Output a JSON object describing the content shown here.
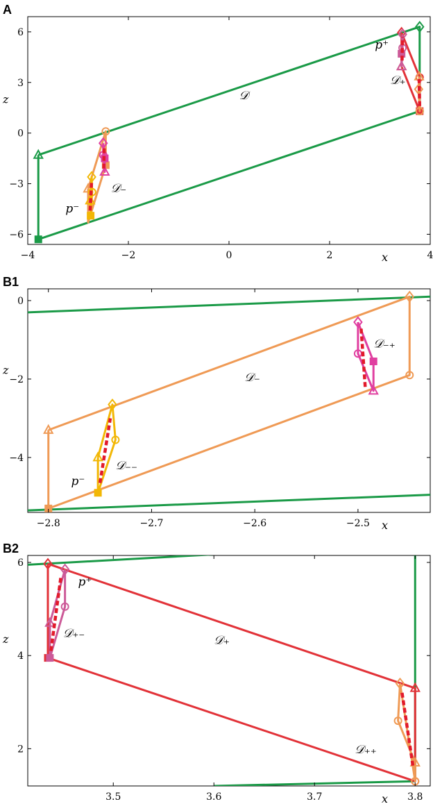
{
  "colors": {
    "green": "#1a9a47",
    "orange": "#ef9a55",
    "gold": "#f2b705",
    "pink": "#e03fa0",
    "red": "#e23238",
    "mauve": "#cc5a98",
    "dash": "#e21a2b"
  },
  "chart_data": [
    {
      "type": "line",
      "panel": "A",
      "xlabel": "x",
      "ylabel": "z",
      "xlim": [
        -4,
        4
      ],
      "ylim": [
        -6.6,
        6.9
      ],
      "xticks": [
        -4,
        -2,
        0,
        2,
        4
      ],
      "yticks": [
        -6,
        -3,
        0,
        3,
        6
      ],
      "labels": [
        {
          "text": "𝒟",
          "x": 0.2,
          "y": 2.0
        },
        {
          "text": "𝒟₋",
          "x": -2.35,
          "y": -3.5
        },
        {
          "text": "𝒟₊",
          "x": 3.2,
          "y": 2.9
        },
        {
          "text": "p⁻",
          "x": -3.25,
          "y": -4.7
        },
        {
          "text": "p⁺",
          "x": 2.9,
          "y": 5.0
        }
      ],
      "series": [
        {
          "color": "green",
          "markers": [
            "triangle",
            "diamond",
            "circle",
            "square"
          ],
          "points": [
            [
              -3.79,
              -1.3
            ],
            [
              3.79,
              6.3
            ],
            [
              3.79,
              1.3
            ],
            [
              -3.79,
              -6.3
            ],
            [
              -3.79,
              -1.3
            ]
          ]
        },
        {
          "color": "orange",
          "markers": [
            "triangle",
            "circle",
            "square"
          ],
          "points": [
            [
              -2.8,
              -3.3
            ],
            [
              -2.45,
              0.1
            ],
            [
              -2.45,
              -1.9
            ],
            [
              -2.8,
              -5.3
            ],
            [
              -2.8,
              -3.3
            ]
          ]
        },
        {
          "color": "red",
          "markers": [
            "diamond",
            "circle",
            "square",
            "triangle"
          ],
          "points": [
            [
              3.43,
              5.95
            ],
            [
              3.79,
              3.3
            ],
            [
              3.79,
              1.3
            ],
            [
              3.43,
              3.95
            ],
            [
              3.43,
              5.95
            ]
          ]
        },
        {
          "color": "gold",
          "markers": [
            "triangle",
            "diamond",
            "circle",
            "square"
          ],
          "points": [
            [
              -2.76,
              -4.0
            ],
            [
              -2.73,
              -2.6
            ],
            [
              -2.72,
              -3.5
            ],
            [
              -2.75,
              -4.9
            ],
            [
              -2.76,
              -4.0
            ]
          ]
        },
        {
          "color": "pink",
          "markers": [
            "diamond",
            "circle",
            "triangle",
            "square"
          ],
          "points": [
            [
              -2.5,
              -0.6
            ],
            [
              -2.5,
              -1.3
            ],
            [
              -2.47,
              -2.3
            ],
            [
              -2.47,
              -1.5
            ],
            [
              -2.5,
              -0.6
            ]
          ]
        },
        {
          "color": "mauve",
          "markers": [
            "diamond",
            "circle",
            "triangle",
            "square"
          ],
          "points": [
            [
              3.45,
              5.85
            ],
            [
              3.45,
              5.05
            ],
            [
              3.43,
              3.95
            ],
            [
              3.43,
              4.7
            ],
            [
              3.45,
              5.85
            ]
          ]
        },
        {
          "color": "orange",
          "markers": [
            "triangle",
            "circle",
            "diamond"
          ],
          "points": [
            [
              3.78,
              3.35
            ],
            [
              3.79,
              1.3
            ],
            [
              3.77,
              2.6
            ],
            [
              3.78,
              3.35
            ]
          ]
        }
      ],
      "dashes": [
        {
          "points": [
            [
              -2.76,
              -4.6
            ],
            [
              -2.73,
              -2.8
            ]
          ]
        },
        {
          "points": [
            [
              -2.49,
              -2.1
            ],
            [
              -2.48,
              -0.9
            ]
          ]
        },
        {
          "points": [
            [
              3.44,
              4.3
            ],
            [
              3.45,
              5.7
            ]
          ]
        },
        {
          "points": [
            [
              3.79,
              1.6
            ],
            [
              3.78,
              3.2
            ]
          ]
        }
      ]
    },
    {
      "type": "line",
      "panel": "B1",
      "xlabel": "x",
      "ylabel": "z",
      "xlim": [
        -2.82,
        -2.43
      ],
      "ylim": [
        -5.4,
        0.3
      ],
      "xticks": [
        -2.8,
        -2.7,
        -2.6,
        -2.5
      ],
      "yticks": [
        -4,
        -2,
        0
      ],
      "labels": [
        {
          "text": "𝒟₋",
          "x": -2.61,
          "y": -2.05
        },
        {
          "text": "𝒟₋₊",
          "x": -2.485,
          "y": -1.2
        },
        {
          "text": "𝒟₋₋",
          "x": -2.735,
          "y": -4.3
        },
        {
          "text": "p⁻",
          "x": -2.778,
          "y": -4.7
        }
      ],
      "series": [
        {
          "color": "green",
          "markers": [],
          "points": [
            [
              -2.82,
              -0.3
            ],
            [
              -2.43,
              0.1
            ]
          ]
        },
        {
          "color": "green",
          "markers": [],
          "points": [
            [
              -2.82,
              -5.35
            ],
            [
              -2.43,
              -4.95
            ]
          ]
        },
        {
          "color": "orange",
          "markers": [
            "triangle",
            "diamond",
            "circle",
            "square"
          ],
          "points": [
            [
              -2.8,
              -3.3
            ],
            [
              -2.45,
              0.1
            ],
            [
              -2.45,
              -1.9
            ],
            [
              -2.8,
              -5.3
            ],
            [
              -2.8,
              -3.3
            ]
          ]
        },
        {
          "color": "pink",
          "markers": [
            "diamond",
            "circle",
            "triangle",
            "square"
          ],
          "points": [
            [
              -2.5,
              -0.55
            ],
            [
              -2.5,
              -1.35
            ],
            [
              -2.485,
              -2.3
            ],
            [
              -2.485,
              -1.55
            ],
            [
              -2.5,
              -0.55
            ]
          ]
        },
        {
          "color": "gold",
          "markers": [
            "triangle",
            "diamond",
            "circle",
            "square"
          ],
          "points": [
            [
              -2.752,
              -4.0
            ],
            [
              -2.738,
              -2.65
            ],
            [
              -2.735,
              -3.55
            ],
            [
              -2.752,
              -4.9
            ],
            [
              -2.752,
              -4.0
            ]
          ]
        }
      ],
      "dashes": [
        {
          "points": [
            [
              -2.75,
              -4.65
            ],
            [
              -2.74,
              -3.0
            ]
          ]
        },
        {
          "points": [
            [
              -2.493,
              -2.2
            ],
            [
              -2.497,
              -0.7
            ]
          ]
        }
      ]
    },
    {
      "type": "line",
      "panel": "B2",
      "xlabel": "x",
      "ylabel": "z",
      "xlim": [
        3.415,
        3.815
      ],
      "ylim": [
        1.2,
        6.15
      ],
      "xticks": [
        3.5,
        3.6,
        3.7,
        3.8
      ],
      "yticks": [
        2,
        4,
        6
      ],
      "labels": [
        {
          "text": "𝒟₊",
          "x": 3.6,
          "y": 4.25
        },
        {
          "text": "𝒟₊₋",
          "x": 3.45,
          "y": 4.4
        },
        {
          "text": "𝒟₊₊",
          "x": 3.74,
          "y": 1.9
        },
        {
          "text": "p⁺",
          "x": 3.465,
          "y": 5.5
        }
      ],
      "series": [
        {
          "color": "green",
          "markers": [],
          "points": [
            [
              3.415,
              5.95
            ],
            [
              3.64,
              6.22
            ]
          ]
        },
        {
          "color": "green",
          "markers": [],
          "points": [
            [
              3.6,
              1.2
            ],
            [
              3.8,
              1.3
            ]
          ]
        },
        {
          "color": "green",
          "markers": [],
          "points": [
            [
              3.8,
              1.3
            ],
            [
              3.8,
              6.15
            ]
          ]
        },
        {
          "color": "red",
          "markers": [
            "diamond",
            "triangle",
            "circle",
            "square"
          ],
          "points": [
            [
              3.435,
              5.97
            ],
            [
              3.8,
              3.3
            ],
            [
              3.8,
              1.3
            ],
            [
              3.435,
              3.95
            ],
            [
              3.435,
              5.97
            ]
          ]
        },
        {
          "color": "mauve",
          "markers": [
            "diamond",
            "circle",
            "square",
            "triangle"
          ],
          "points": [
            [
              3.452,
              5.85
            ],
            [
              3.452,
              5.05
            ],
            [
              3.437,
              3.95
            ],
            [
              3.437,
              4.7
            ],
            [
              3.452,
              5.85
            ]
          ]
        },
        {
          "color": "orange",
          "markers": [
            "diamond",
            "circle",
            "triangle",
            "circle"
          ],
          "points": [
            [
              3.785,
              3.4
            ],
            [
              3.783,
              2.6
            ],
            [
              3.8,
              1.7
            ],
            [
              3.8,
              1.3
            ],
            [
              3.785,
              3.4
            ]
          ]
        }
      ],
      "dashes": [
        {
          "points": [
            [
              3.438,
              4.1
            ],
            [
              3.448,
              5.7
            ]
          ]
        },
        {
          "points": [
            [
              3.787,
              3.2
            ],
            [
              3.798,
              1.6
            ]
          ]
        }
      ]
    }
  ]
}
